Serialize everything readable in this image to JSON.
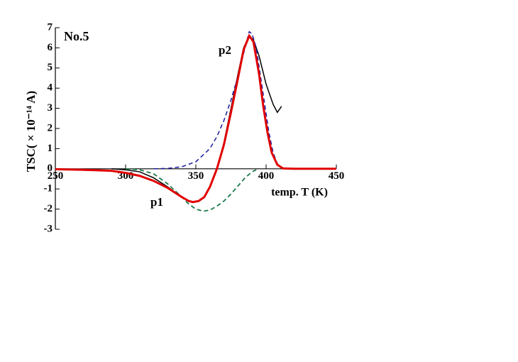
{
  "chart_data": {
    "type": "line",
    "ylabel": "TSC( × 10⁻¹⁴ A)",
    "xlabel": "temp. T (K)",
    "annotations": [
      "No.5",
      "p2",
      "p1"
    ],
    "xlim": [
      250,
      450
    ],
    "xticks": [
      250,
      300,
      350,
      400,
      450
    ],
    "ylim": [
      -3,
      7
    ],
    "yticks": [
      -3,
      -2,
      -1,
      0,
      1,
      2,
      3,
      4,
      5,
      6,
      7
    ],
    "series": [
      {
        "color": "#000000",
        "dashed": false,
        "x": [
          290,
          300,
          310,
          320,
          330,
          340,
          345,
          348,
          352,
          356,
          360,
          365,
          370,
          375,
          380,
          384,
          388,
          391,
          395,
          400,
          405,
          408,
          411
        ],
        "values": [
          0,
          -0.05,
          -0.15,
          -0.45,
          -0.9,
          -1.4,
          -1.6,
          -1.65,
          -1.6,
          -1.4,
          -0.9,
          0,
          1.3,
          3.0,
          4.7,
          6.0,
          6.6,
          6.4,
          5.6,
          4.2,
          3.2,
          2.8,
          3.1
        ]
      },
      {
        "color": "#1a1aa0",
        "dashed": true,
        "x": [
          320,
          330,
          340,
          350,
          360,
          365,
          370,
          375,
          380,
          385,
          388,
          390,
          393,
          396,
          399,
          402,
          405,
          408,
          412,
          420
        ],
        "values": [
          0,
          0.02,
          0.1,
          0.35,
          1.0,
          1.6,
          2.4,
          3.4,
          4.6,
          6.0,
          6.8,
          6.7,
          6.0,
          4.6,
          3.2,
          1.8,
          0.8,
          0.25,
          0.03,
          0
        ]
      },
      {
        "color": "#1a7a4a",
        "dashed": true,
        "x": [
          300,
          310,
          320,
          330,
          340,
          345,
          350,
          355,
          360,
          365,
          370,
          375,
          380,
          385,
          390,
          393
        ],
        "values": [
          0,
          -0.05,
          -0.25,
          -0.75,
          -1.4,
          -1.75,
          -2.0,
          -2.1,
          -2.05,
          -1.85,
          -1.6,
          -1.25,
          -0.85,
          -0.45,
          -0.15,
          -0.05
        ]
      },
      {
        "color": "#e00000",
        "dashed": false,
        "x": [
          250,
          270,
          290,
          300,
          310,
          320,
          330,
          340,
          345,
          348,
          352,
          356,
          360,
          365,
          370,
          375,
          380,
          384,
          388,
          391,
          395,
          398,
          401,
          404,
          408,
          412,
          420,
          450
        ],
        "values": [
          -0.02,
          -0.05,
          -0.1,
          -0.2,
          -0.35,
          -0.6,
          -0.95,
          -1.4,
          -1.6,
          -1.65,
          -1.6,
          -1.4,
          -0.9,
          0,
          1.2,
          2.8,
          4.5,
          5.9,
          6.6,
          6.3,
          4.7,
          3.1,
          1.8,
          0.8,
          0.2,
          0.02,
          0,
          0
        ]
      }
    ]
  }
}
